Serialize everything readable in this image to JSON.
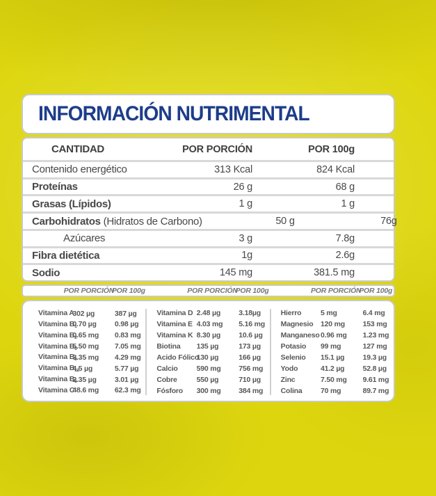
{
  "colors": {
    "background_yellow": "#ddd60e",
    "title_blue": "#1d3d8a",
    "text_gray": "#47484a",
    "separator_gray": "#d8d8d8"
  },
  "title": "INFORMACIÓN NUTRIMENTAL",
  "main_table": {
    "header": {
      "quantity": "CANTIDAD",
      "per_portion": "POR PORCIÓN",
      "per_100g": "POR 100g"
    },
    "rows": [
      {
        "name": "Contenido energético",
        "note": "",
        "per_portion": "313 Kcal",
        "per_100g": "824 Kcal"
      },
      {
        "name": "Proteínas",
        "note": "",
        "per_portion": "26 g",
        "per_100g": "68 g"
      },
      {
        "name": "Grasas (Lípidos)",
        "note": "",
        "per_portion": "1 g",
        "per_100g": "1 g"
      },
      {
        "name": "Carbohidratos",
        "note": "(Hidratos de Carbono)",
        "per_portion": "50 g",
        "per_100g": "76g"
      },
      {
        "name": "Azúcares",
        "note": "",
        "per_portion": "3 g",
        "per_100g": "7.8g"
      },
      {
        "name": "Fibra dietética",
        "note": "",
        "per_portion": "1g",
        "per_100g": "2.6g"
      },
      {
        "name": "Sodio",
        "note": "",
        "per_portion": "145 mg",
        "per_100g": "381.5 mg"
      }
    ]
  },
  "micro_header": {
    "per_portion": "POR PORCIÓN",
    "per_100g": "POR 100g"
  },
  "micro_columns": [
    {
      "rows": [
        {
          "name": "Vitamina A",
          "sub": "",
          "v1": "302 µg",
          "v2": "387 µg"
        },
        {
          "name": "Vitamina B",
          "sub": "1",
          "v1": "0.70 µg",
          "v2": "0.98 µg"
        },
        {
          "name": "Vitamina B",
          "sub": "2",
          "v1": "0.65 mg",
          "v2": "0.83 mg"
        },
        {
          "name": "Vitamina B",
          "sub": "3",
          "v1": "5.50 mg",
          "v2": "7.05 mg"
        },
        {
          "name": "Vitamina B",
          "sub": "5",
          "v1": "3.35 mg",
          "v2": "4.29 mg"
        },
        {
          "name": "Vitamina B",
          "sub": "12",
          "v1": "4.5 µg",
          "v2": "5.77 µg"
        },
        {
          "name": "Vitamina B",
          "sub": "6",
          "v1": "2.35 µg",
          "v2": "3.01 µg"
        },
        {
          "name": "Vitamina C",
          "sub": "",
          "v1": "48.6 mg",
          "v2": "62.3 mg"
        }
      ]
    },
    {
      "rows": [
        {
          "name": "Vitamina D",
          "sub": "",
          "v1": "2.48 µg",
          "v2": "3.18µg"
        },
        {
          "name": "Vitamina E",
          "sub": "",
          "v1": "4.03 mg",
          "v2": "5.16 mg"
        },
        {
          "name": "Vitamina K",
          "sub": "",
          "v1": "8.30 µg",
          "v2": "10.6 µg"
        },
        {
          "name": "Biotina",
          "sub": "",
          "v1": "135 µg",
          "v2": "173 µg"
        },
        {
          "name": "Acido Fólico",
          "sub": "",
          "v1": "130 µg",
          "v2": "166 µg"
        },
        {
          "name": "Calcio",
          "sub": "",
          "v1": "590 mg",
          "v2": "756 mg"
        },
        {
          "name": "Cobre",
          "sub": "",
          "v1": "550 µg",
          "v2": "710 µg"
        },
        {
          "name": "Fósforo",
          "sub": "",
          "v1": "300 mg",
          "v2": "384 mg"
        }
      ]
    },
    {
      "rows": [
        {
          "name": "Hierro",
          "sub": "",
          "v1": "5 mg",
          "v2": "6.4 mg"
        },
        {
          "name": "Magnesio",
          "sub": "",
          "v1": "120 mg",
          "v2": "153 mg"
        },
        {
          "name": "Manganeso",
          "sub": "",
          "v1": "0.96 mg",
          "v2": "1.23 mg"
        },
        {
          "name": "Potasio",
          "sub": "",
          "v1": "99 mg",
          "v2": "127 mg"
        },
        {
          "name": "Selenio",
          "sub": "",
          "v1": "15.1 µg",
          "v2": "19.3 µg"
        },
        {
          "name": "Yodo",
          "sub": "",
          "v1": "41.2 µg",
          "v2": "52.8 µg"
        },
        {
          "name": "Zinc",
          "sub": "",
          "v1": "7.50 mg",
          "v2": "9.61 mg"
        },
        {
          "name": "Colina",
          "sub": "",
          "v1": "70 mg",
          "v2": "89.7 mg"
        }
      ]
    }
  ]
}
